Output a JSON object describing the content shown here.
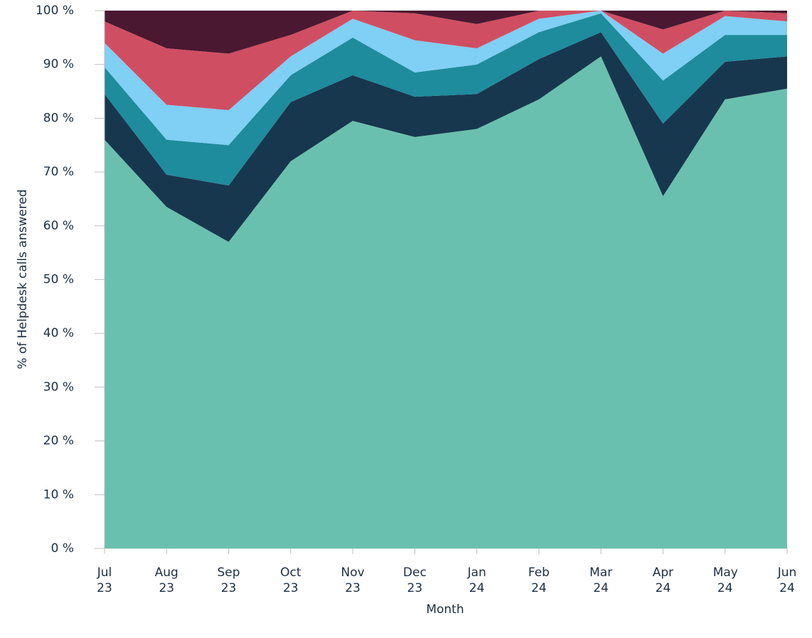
{
  "chart_data": {
    "type": "stacked_area",
    "xlabel": "Month",
    "ylabel": "% of Helpdesk calls answered",
    "categories": [
      "Jul 23",
      "Aug 23",
      "Sep 23",
      "Oct 23",
      "Nov 23",
      "Dec 23",
      "Jan 24",
      "Feb 24",
      "Mar 24",
      "Apr 24",
      "May 24",
      "Jun 24"
    ],
    "series": [
      {
        "color": "#6ac0ae",
        "values": [
          76,
          63.5,
          57,
          72,
          79.5,
          76.5,
          78,
          83.5,
          91.5,
          65.5,
          83.5,
          85.5
        ]
      },
      {
        "color": "#17374f",
        "values": [
          8.5,
          6,
          10.5,
          11,
          8.5,
          7.5,
          6.5,
          7.5,
          4.5,
          13.5,
          7,
          6
        ]
      },
      {
        "color": "#1e8c9c",
        "values": [
          5,
          6.5,
          7.5,
          5,
          7,
          4.5,
          5.5,
          5,
          3.5,
          8,
          5,
          4
        ]
      },
      {
        "color": "#80cff4",
        "values": [
          4.5,
          6.5,
          6.5,
          3.5,
          3.5,
          6,
          3,
          2.5,
          0.5,
          5,
          3.5,
          2.5
        ]
      },
      {
        "color": "#d04e62",
        "values": [
          4,
          10.5,
          10.5,
          4,
          1.5,
          5,
          4.5,
          1.5,
          0,
          4.5,
          1,
          1.5
        ]
      },
      {
        "color": "#4a1830",
        "values": [
          2,
          7,
          8,
          4.5,
          0,
          0.5,
          2.5,
          0,
          0,
          3.5,
          0,
          0.5
        ]
      }
    ],
    "ylim": [
      0,
      100
    ],
    "yticks": [
      {
        "value": 0,
        "label": "0 %"
      },
      {
        "value": 10,
        "label": "10 %"
      },
      {
        "value": 20,
        "label": "20 %"
      },
      {
        "value": 30,
        "label": "30 %"
      },
      {
        "value": 40,
        "label": "40 %"
      },
      {
        "value": 50,
        "label": "50 %"
      },
      {
        "value": 60,
        "label": "60 %"
      },
      {
        "value": 70,
        "label": "70 %"
      },
      {
        "value": 80,
        "label": "80 %"
      },
      {
        "value": 90,
        "label": "90 %"
      },
      {
        "value": 100,
        "label": "100 %"
      }
    ],
    "grid": true
  }
}
